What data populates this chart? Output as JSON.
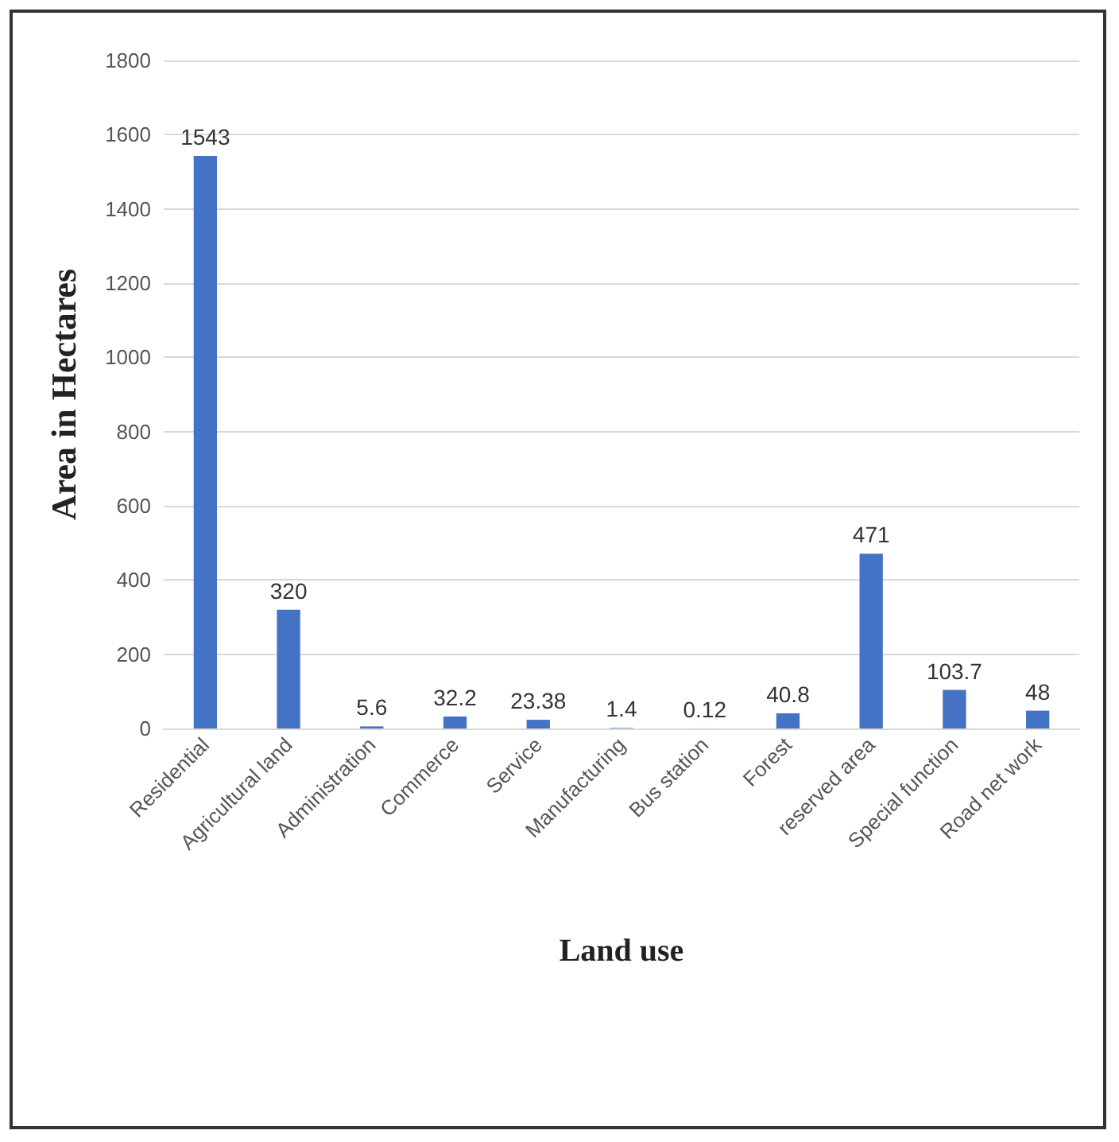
{
  "chart_data": {
    "type": "bar",
    "xlabel": "Land use",
    "ylabel": "Area in Hectares",
    "categories": [
      "Residential",
      "Agricultural land",
      "Administration",
      "Commerce",
      "Service",
      "Manufacturing",
      "Bus station",
      "Forest",
      "reserved area",
      "Special function",
      "Road net work"
    ],
    "values": [
      1543,
      320,
      5.6,
      32.2,
      23.38,
      1.4,
      0.12,
      40.8,
      471,
      103.7,
      48
    ],
    "color": "#4472c4",
    "ylim": [
      0,
      1800
    ],
    "yticks": [
      0,
      200,
      400,
      600,
      800,
      1000,
      1200,
      1400,
      1600,
      1800
    ],
    "grid": "y",
    "data_labels": true
  }
}
